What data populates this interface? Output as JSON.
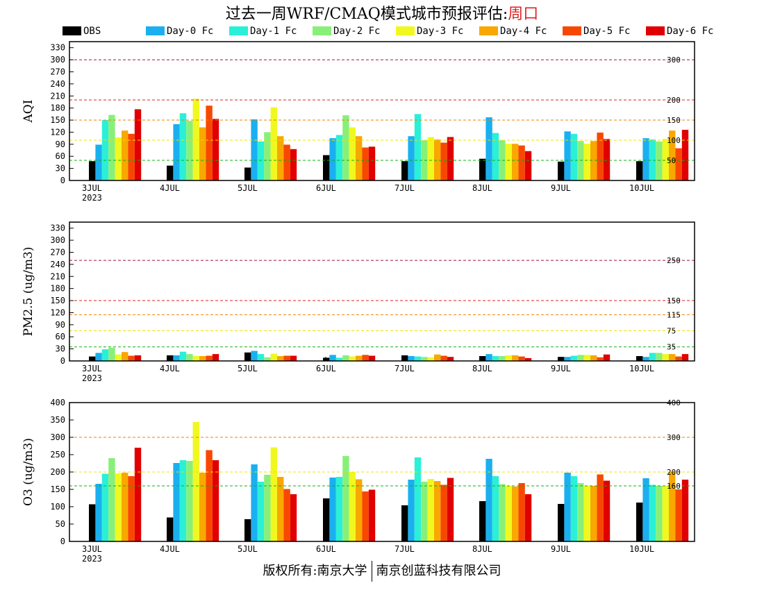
{
  "title": {
    "prefix": "过去一周WRF/CMAQ模式城市预报评估:",
    "city": "周口"
  },
  "footer": {
    "left": "版权所有:南京大学",
    "right": "南京创蓝科技有限公司"
  },
  "legend": [
    {
      "name": "OBS",
      "color": "#000000"
    },
    {
      "name": "Day-0 Fc",
      "color": "#1ab0f0"
    },
    {
      "name": "Day-1 Fc",
      "color": "#2af0d8"
    },
    {
      "name": "Day-2 Fc",
      "color": "#88f078"
    },
    {
      "name": "Day-3 Fc",
      "color": "#f0f820"
    },
    {
      "name": "Day-4 Fc",
      "color": "#f8a800"
    },
    {
      "name": "Day-5 Fc",
      "color": "#f84800"
    },
    {
      "name": "Day-6 Fc",
      "color": "#e00000"
    }
  ],
  "chart_data": [
    {
      "type": "bar",
      "ylabel": "AQI",
      "ylim": [
        0,
        345
      ],
      "yticks": [
        0,
        30,
        60,
        90,
        120,
        150,
        180,
        210,
        240,
        270,
        300,
        330
      ],
      "categories": [
        "3JUL",
        "4JUL",
        "5JUL",
        "6JUL",
        "7JUL",
        "8JUL",
        "9JUL",
        "10JUL"
      ],
      "first_sublabel": "2023",
      "refs": [
        {
          "value": 300,
          "label": "300",
          "color": "#a01040"
        },
        {
          "value": 200,
          "label": "200",
          "color": "#e02020"
        },
        {
          "value": 150,
          "label": "150",
          "color": "#f08000"
        },
        {
          "value": 100,
          "label": "100",
          "color": "#f0e000"
        },
        {
          "value": 50,
          "label": "50",
          "color": "#10b010"
        }
      ],
      "series": [
        {
          "name": "OBS",
          "values": [
            48,
            37,
            32,
            63,
            48,
            54,
            47,
            48
          ]
        },
        {
          "name": "Day-0 Fc",
          "values": [
            89,
            140,
            152,
            105,
            110,
            157,
            122,
            105
          ]
        },
        {
          "name": "Day-1 Fc",
          "values": [
            150,
            167,
            97,
            113,
            165,
            118,
            116,
            102
          ]
        },
        {
          "name": "Day-2 Fc",
          "values": [
            163,
            148,
            120,
            162,
            100,
            100,
            98,
            97
          ]
        },
        {
          "name": "Day-3 Fc",
          "values": [
            107,
            203,
            182,
            132,
            108,
            91,
            91,
            103
          ]
        },
        {
          "name": "Day-4 Fc",
          "values": [
            124,
            132,
            110,
            110,
            102,
            91,
            98,
            124
          ]
        },
        {
          "name": "Day-5 Fc",
          "values": [
            116,
            186,
            89,
            82,
            94,
            87,
            119,
            80
          ]
        },
        {
          "name": "Day-6 Fc",
          "values": [
            177,
            153,
            78,
            84,
            108,
            73,
            103,
            126
          ]
        }
      ]
    },
    {
      "type": "bar",
      "ylabel": "PM2.5 (ug/m3)",
      "ylim": [
        0,
        345
      ],
      "yticks": [
        0,
        30,
        60,
        90,
        120,
        150,
        180,
        210,
        240,
        270,
        300,
        330
      ],
      "categories": [
        "3JUL",
        "4JUL",
        "5JUL",
        "6JUL",
        "7JUL",
        "8JUL",
        "9JUL",
        "10JUL"
      ],
      "first_sublabel": "2023",
      "refs": [
        {
          "value": 250,
          "label": "250",
          "color": "#a01040"
        },
        {
          "value": 150,
          "label": "150",
          "color": "#e02020"
        },
        {
          "value": 115,
          "label": "115",
          "color": "#f08000"
        },
        {
          "value": 75,
          "label": "75",
          "color": "#f0e000"
        },
        {
          "value": 35,
          "label": "35",
          "color": "#10b010"
        }
      ],
      "series": [
        {
          "name": "OBS",
          "values": [
            11,
            14,
            21,
            8,
            14,
            12,
            10,
            12
          ]
        },
        {
          "name": "Day-0 Fc",
          "values": [
            20,
            14,
            25,
            15,
            12,
            17,
            10,
            10
          ]
        },
        {
          "name": "Day-1 Fc",
          "values": [
            29,
            23,
            17,
            8,
            11,
            12,
            13,
            20
          ]
        },
        {
          "name": "Day-2 Fc",
          "values": [
            33,
            17,
            9,
            14,
            10,
            12,
            15,
            20
          ]
        },
        {
          "name": "Day-3 Fc",
          "values": [
            16,
            12,
            18,
            11,
            9,
            14,
            15,
            17
          ]
        },
        {
          "name": "Day-4 Fc",
          "values": [
            22,
            12,
            12,
            13,
            16,
            14,
            14,
            17
          ]
        },
        {
          "name": "Day-5 Fc",
          "values": [
            13,
            13,
            13,
            15,
            13,
            11,
            9,
            11
          ]
        },
        {
          "name": "Day-6 Fc",
          "values": [
            14,
            17,
            13,
            13,
            10,
            7,
            16,
            17
          ]
        }
      ]
    },
    {
      "type": "bar",
      "ylabel": "O3 (ug/m3)",
      "ylim": [
        0,
        400
      ],
      "yticks": [
        0,
        50,
        100,
        150,
        200,
        250,
        300,
        350,
        400
      ],
      "categories": [
        "3JUL",
        "4JUL",
        "5JUL",
        "6JUL",
        "7JUL",
        "8JUL",
        "9JUL",
        "10JUL"
      ],
      "first_sublabel": "2023",
      "refs": [
        {
          "value": 400,
          "label": "400",
          "color": "#e02020"
        },
        {
          "value": 300,
          "label": "300",
          "color": "#f08000"
        },
        {
          "value": 200,
          "label": "200",
          "color": "#f0e000"
        },
        {
          "value": 160,
          "label": "160",
          "color": "#10b010"
        }
      ],
      "series": [
        {
          "name": "OBS",
          "values": [
            107,
            69,
            64,
            124,
            104,
            116,
            108,
            112
          ]
        },
        {
          "name": "Day-0 Fc",
          "values": [
            166,
            226,
            222,
            184,
            178,
            238,
            198,
            182
          ]
        },
        {
          "name": "Day-1 Fc",
          "values": [
            195,
            234,
            172,
            186,
            242,
            188,
            188,
            163
          ]
        },
        {
          "name": "Day-2 Fc",
          "values": [
            240,
            232,
            192,
            246,
            172,
            165,
            168,
            160
          ]
        },
        {
          "name": "Day-3 Fc",
          "values": [
            196,
            344,
            271,
            200,
            180,
            160,
            160,
            160
          ]
        },
        {
          "name": "Day-4 Fc",
          "values": [
            198,
            198,
            186,
            179,
            174,
            158,
            160,
            200
          ]
        },
        {
          "name": "Day-5 Fc",
          "values": [
            188,
            263,
            151,
            144,
            163,
            168,
            193,
            150
          ]
        },
        {
          "name": "Day-6 Fc",
          "values": [
            270,
            234,
            136,
            149,
            183,
            136,
            175,
            178
          ]
        }
      ]
    }
  ]
}
